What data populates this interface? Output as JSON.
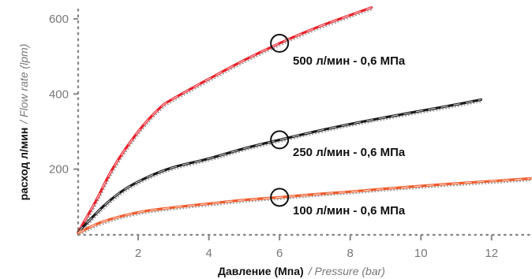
{
  "chart_data": {
    "type": "line",
    "xlabel": "Давление (Мпа)",
    "xlabel_secondary": "/ Pressure (bar)",
    "ylabel": "расход л/мин",
    "ylabel_secondary": "/ Flow rate (lpm)",
    "xlim": [
      0.3,
      13.1
    ],
    "ylim": [
      25,
      625
    ],
    "x_ticks": [
      2,
      4,
      6,
      8,
      10,
      12
    ],
    "y_ticks": [
      200,
      400,
      600
    ],
    "grid": false,
    "series": [
      {
        "name": "500 л/мин - 0,6 МПа",
        "color": "#e8202a",
        "x": [
          0.3,
          0.8,
          1.3,
          2.0,
          2.6,
          3.0,
          4.0,
          5.0,
          6.0,
          7.0,
          8.0,
          8.6
        ],
        "y": [
          32,
          115,
          205,
          300,
          362,
          388,
          440,
          490,
          535,
          575,
          610,
          630
        ]
      },
      {
        "name": "250 л/мин - 0,6 МПа",
        "color": "#1a1a1a",
        "x": [
          0.3,
          1.0,
          1.6,
          2.3,
          3.0,
          4.0,
          5.0,
          6.0,
          7.0,
          8.0,
          9.0,
          10.0,
          11.0,
          11.7
        ],
        "y": [
          32,
          100,
          145,
          180,
          205,
          228,
          255,
          278,
          300,
          320,
          338,
          355,
          372,
          385
        ]
      },
      {
        "name": "100 л/мин - 0,6 МПа",
        "color": "#ee5a2a",
        "x": [
          0.3,
          1.0,
          2.0,
          3.0,
          4.0,
          5.0,
          6.0,
          7.0,
          8.0,
          9.0,
          10.0,
          11.0,
          12.0,
          13.1
        ],
        "y": [
          30,
          60,
          85,
          98,
          108,
          118,
          125,
          133,
          140,
          148,
          155,
          162,
          168,
          175
        ]
      }
    ],
    "markers": [
      {
        "x": 6,
        "y": 535
      },
      {
        "x": 6,
        "y": 278
      },
      {
        "x": 6,
        "y": 125
      }
    ],
    "annotations": [
      {
        "text": "500 л/мин - 0,6 МПа"
      },
      {
        "text": "250 л/мин - 0,6 МПа"
      },
      {
        "text": "100 л/мин - 0,6 МПа"
      }
    ]
  }
}
